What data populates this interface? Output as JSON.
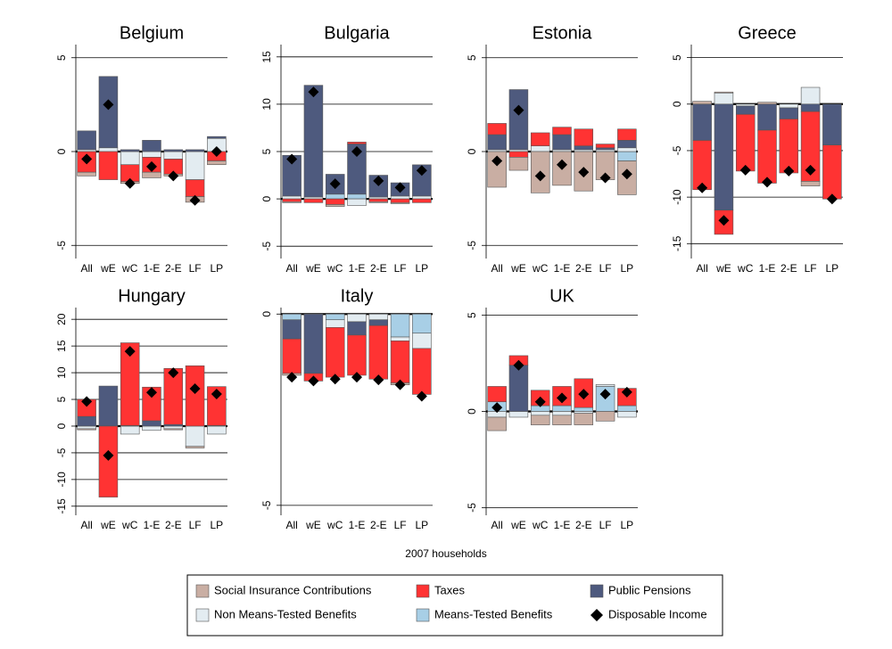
{
  "chart_data": [
    {
      "type": "bar",
      "title": "Belgium",
      "categories": [
        "All",
        "wE",
        "wC",
        "1-E",
        "2-E",
        "LF",
        "LP"
      ],
      "ylim": [
        -5.7,
        5.7
      ],
      "yticks": [
        5,
        0,
        -5
      ],
      "series": [
        {
          "values": [
            -0.2,
            0,
            -0.1,
            -0.3,
            -0.1,
            -0.3,
            -0.2
          ]
        },
        {
          "values": [
            -1.1,
            -1.5,
            -0.9,
            -0.8,
            -0.8,
            -0.9,
            -0.5
          ]
        },
        {
          "values": [
            1.0,
            3.8,
            0.1,
            0.6,
            0.1,
            0.1,
            0.1
          ]
        },
        {
          "values": [
            0.1,
            0.2,
            -0.7,
            -0.3,
            -0.4,
            -1.5,
            0.7
          ]
        },
        {
          "values": [
            0,
            0,
            0,
            0,
            0,
            0,
            0
          ]
        },
        {
          "values": [
            -0.4,
            2.5,
            -1.7,
            -0.8,
            -1.3,
            -2.6,
            0
          ]
        }
      ]
    },
    {
      "type": "bar",
      "title": "Bulgaria",
      "categories": [
        "All",
        "wE",
        "wC",
        "1-E",
        "2-E",
        "LF",
        "LP"
      ],
      "ylim": [
        -6.3,
        16.3
      ],
      "yticks": [
        15,
        10,
        5,
        0,
        -5
      ],
      "series": [
        {
          "values": [
            -0.1,
            0,
            -0.2,
            0,
            -0.1,
            -0.1,
            0
          ]
        },
        {
          "values": [
            -0.3,
            -0.4,
            -0.6,
            0.2,
            -0.3,
            -0.4,
            -0.4
          ]
        },
        {
          "values": [
            4.3,
            11.8,
            2.1,
            5.3,
            2.3,
            1.4,
            3.3
          ]
        },
        {
          "values": [
            0.3,
            0.2,
            0,
            -0.7,
            0.2,
            0.3,
            0.3
          ]
        },
        {
          "values": [
            0,
            0,
            0.5,
            0.5,
            0,
            0,
            0
          ]
        },
        {
          "values": [
            4.2,
            11.3,
            1.6,
            5.0,
            1.9,
            1.2,
            3.0
          ]
        }
      ]
    },
    {
      "type": "bar",
      "title": "Estonia",
      "categories": [
        "All",
        "wE",
        "wC",
        "1-E",
        "2-E",
        "LF",
        "LP"
      ],
      "ylim": [
        -5.7,
        5.7
      ],
      "yticks": [
        5,
        0,
        -5
      ],
      "series": [
        {
          "values": [
            -1.9,
            -0.7,
            -2.2,
            -1.8,
            -2.1,
            -1.5,
            -1.8
          ]
        },
        {
          "values": [
            0.6,
            -0.3,
            0.7,
            0.4,
            0.9,
            0.2,
            0.6
          ]
        },
        {
          "values": [
            0.8,
            3.2,
            0,
            0.8,
            0.2,
            0.1,
            0.4
          ]
        },
        {
          "values": [
            0.1,
            0.1,
            0.3,
            0.1,
            0.1,
            0.1,
            0.2
          ]
        },
        {
          "values": [
            0,
            0,
            0,
            0,
            0,
            0,
            -0.5
          ]
        },
        {
          "values": [
            -0.5,
            2.2,
            -1.3,
            -0.7,
            -1.1,
            -1.4,
            -1.2
          ]
        }
      ]
    },
    {
      "type": "bar",
      "title": "Greece",
      "categories": [
        "All",
        "wE",
        "wC",
        "1-E",
        "2-E",
        "LF",
        "LP"
      ],
      "ylim": [
        -16.6,
        6.4
      ],
      "yticks": [
        5,
        0,
        -5,
        -10,
        -15
      ],
      "series": [
        {
          "values": [
            0.3,
            0.1,
            0,
            0.2,
            0,
            -0.5,
            0
          ]
        },
        {
          "values": [
            -5.3,
            -2.6,
            -6.1,
            -5.7,
            -5.8,
            -7.5,
            -5.8
          ]
        },
        {
          "values": [
            -3.9,
            -11.4,
            -0.9,
            -2.8,
            -1.2,
            -0.8,
            -4.4
          ]
        },
        {
          "values": [
            0,
            1.2,
            -0.2,
            0,
            -0.4,
            1.8,
            0
          ]
        },
        {
          "values": [
            0,
            0,
            0,
            0,
            0,
            0,
            0
          ]
        },
        {
          "values": [
            -9.0,
            -12.5,
            -7.1,
            -8.4,
            -7.2,
            -7.1,
            -10.2
          ]
        }
      ]
    },
    {
      "type": "bar",
      "title": "Hungary",
      "categories": [
        "All",
        "wE",
        "wC",
        "1-E",
        "2-E",
        "LF",
        "LP"
      ],
      "ylim": [
        -16.7,
        22.2
      ],
      "yticks": [
        20,
        15,
        10,
        5,
        0,
        -5,
        -10,
        -15
      ],
      "series": [
        {
          "values": [
            -0.2,
            0,
            0,
            0,
            -0.2,
            -0.3,
            0
          ]
        },
        {
          "values": [
            3.2,
            -13.3,
            15.5,
            6.3,
            10.5,
            11.3,
            7.3
          ]
        },
        {
          "values": [
            1.8,
            7.5,
            0.1,
            1.0,
            0.3,
            0,
            0.1
          ]
        },
        {
          "values": [
            -0.5,
            0,
            -1.5,
            -0.8,
            -0.5,
            -3.8,
            -1.5
          ]
        },
        {
          "values": [
            0,
            0,
            0,
            0,
            0,
            0,
            0
          ]
        },
        {
          "values": [
            4.6,
            -5.5,
            14.0,
            6.3,
            10.0,
            7.0,
            6.0
          ]
        }
      ]
    },
    {
      "type": "bar",
      "title": "Italy",
      "categories": [
        "All",
        "wE",
        "wC",
        "1-E",
        "2-E",
        "LF",
        "LP"
      ],
      "ylim": [
        -5.26,
        0.17
      ],
      "yticks": [
        0,
        -5
      ],
      "series": [
        {
          "values": [
            -0.05,
            0,
            0,
            0,
            0,
            -0.05,
            0
          ]
        },
        {
          "values": [
            -0.9,
            -0.2,
            -1.3,
            -1.05,
            -1.4,
            -1.1,
            -1.2
          ]
        },
        {
          "values": [
            -0.5,
            -1.55,
            0,
            -0.35,
            -0.15,
            0,
            0
          ]
        },
        {
          "values": [
            0,
            0,
            -0.2,
            -0.2,
            -0.15,
            -0.1,
            -0.4
          ]
        },
        {
          "values": [
            -0.15,
            0,
            -0.15,
            0,
            0,
            -0.6,
            -0.5
          ]
        },
        {
          "values": [
            -1.65,
            -1.75,
            -1.7,
            -1.65,
            -1.72,
            -1.85,
            -2.15
          ]
        }
      ]
    },
    {
      "type": "bar",
      "title": "UK",
      "categories": [
        "All",
        "wE",
        "wC",
        "1-E",
        "2-E",
        "LF",
        "LP"
      ],
      "ylim": [
        -5.4,
        5.4
      ],
      "yticks": [
        5,
        0,
        -5
      ],
      "series": [
        {
          "values": [
            -0.7,
            0,
            -0.5,
            -0.5,
            -0.6,
            -0.5,
            0
          ]
        },
        {
          "values": [
            0.8,
            0.5,
            0.8,
            1.0,
            1.5,
            0,
            0.9
          ]
        },
        {
          "values": [
            0,
            2.4,
            0,
            0,
            0,
            0,
            0
          ]
        },
        {
          "values": [
            -0.3,
            -0.3,
            -0.2,
            -0.2,
            -0.1,
            0.1,
            -0.3
          ]
        },
        {
          "values": [
            0.5,
            0,
            0.3,
            0.3,
            0.2,
            1.3,
            0.3
          ]
        },
        {
          "values": [
            0.2,
            2.4,
            0.5,
            0.7,
            0.9,
            0.9,
            1.0
          ]
        }
      ]
    }
  ],
  "x_title": "2007 households",
  "series_styles": [
    {
      "name": "Social Insurance Contributions",
      "color": "#c9aea3",
      "shape": "box"
    },
    {
      "name": "Taxes",
      "color": "#ff3333",
      "shape": "box"
    },
    {
      "name": "Public Pensions",
      "color": "#4e5a7e",
      "shape": "box"
    },
    {
      "name": "Non Means-Tested Benefits",
      "color": "#e3ecf1",
      "shape": "box"
    },
    {
      "name": "Means-Tested Benefits",
      "color": "#a8cfe6",
      "shape": "box"
    },
    {
      "name": "Disposable Income",
      "color": "#000000",
      "shape": "diamond"
    }
  ]
}
